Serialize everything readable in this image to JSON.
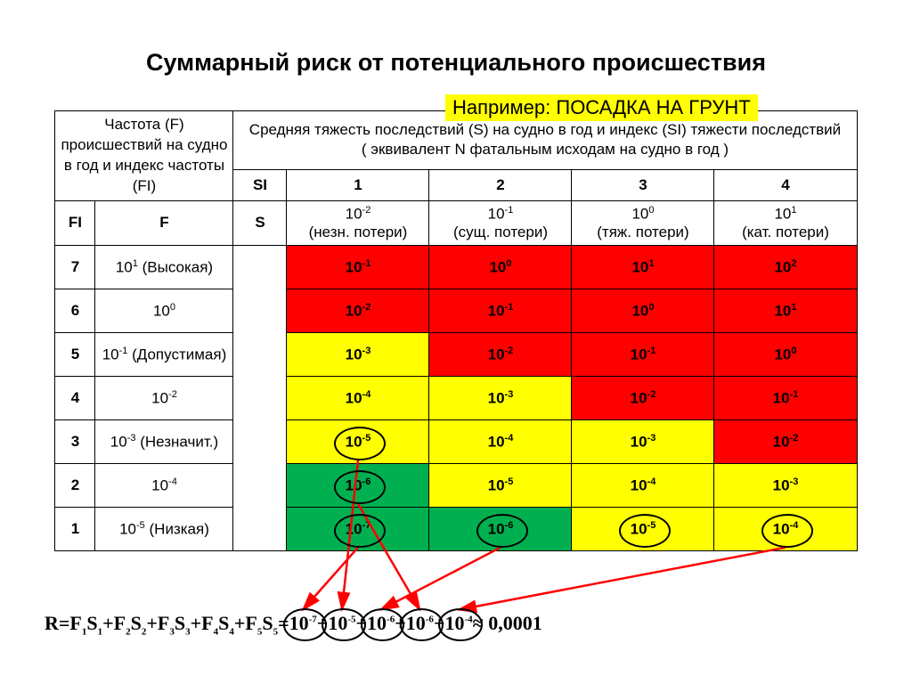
{
  "title": "Суммарный риск от потенциального происшествия",
  "example": {
    "text": "Например: ПОСАДКА  НА  ГРУНТ",
    "bg": "#ffff00"
  },
  "headers": {
    "leftHeader": "Частота (F) происшествий на судно в год и индекс частоты  (FI)",
    "rightHeader": "Средняя тяжесть последствий (S) на судно в год и индекс (SI) тяжести последствий\n( эквивалент N фатальным исходам на судно в год )",
    "FI": "FI",
    "F": "F",
    "SI": "SI",
    "S": "S",
    "siCols": [
      "1",
      "2",
      "3",
      "4"
    ],
    "sHead": [
      {
        "base": "10",
        "exp": "-2",
        "note": "(незн. потери)"
      },
      {
        "base": "10",
        "exp": "-1",
        "note": "(сущ. потери)"
      },
      {
        "base": "10",
        "exp": "0",
        "note": "(тяж. потери)"
      },
      {
        "base": "10",
        "exp": "1",
        "note": "(кат. потери)"
      }
    ]
  },
  "colors": {
    "red": "#ff0000",
    "yellow": "#ffff00",
    "green": "#00b050",
    "white": "#ffffff",
    "arrow": "#ff0000"
  },
  "rows": [
    {
      "fi": "7",
      "f": {
        "b": "10",
        "e": "1",
        "note": "(Высокая)"
      },
      "cells": [
        {
          "b": "10",
          "e": "-1",
          "c": "red"
        },
        {
          "b": "10",
          "e": "0",
          "c": "red"
        },
        {
          "b": "10",
          "e": "1",
          "c": "red"
        },
        {
          "b": "10",
          "e": "2",
          "c": "red"
        }
      ]
    },
    {
      "fi": "6",
      "f": {
        "b": "10",
        "e": "0",
        "note": ""
      },
      "cells": [
        {
          "b": "10",
          "e": "-2",
          "c": "red"
        },
        {
          "b": "10",
          "e": "-1",
          "c": "red"
        },
        {
          "b": "10",
          "e": "0",
          "c": "red"
        },
        {
          "b": "10",
          "e": "1",
          "c": "red"
        }
      ]
    },
    {
      "fi": "5",
      "f": {
        "b": "10",
        "e": "-1",
        "note": "(Допустимая)"
      },
      "cells": [
        {
          "b": "10",
          "e": "-3",
          "c": "yellow"
        },
        {
          "b": "10",
          "e": "-2",
          "c": "red"
        },
        {
          "b": "10",
          "e": "-1",
          "c": "red"
        },
        {
          "b": "10",
          "e": "0",
          "c": "red"
        }
      ]
    },
    {
      "fi": "4",
      "f": {
        "b": "10",
        "e": "-2",
        "note": ""
      },
      "cells": [
        {
          "b": "10",
          "e": "-4",
          "c": "yellow"
        },
        {
          "b": "10",
          "e": "-3",
          "c": "yellow"
        },
        {
          "b": "10",
          "e": "-2",
          "c": "red"
        },
        {
          "b": "10",
          "e": "-1",
          "c": "red"
        }
      ]
    },
    {
      "fi": "3",
      "f": {
        "b": "10",
        "e": "-3",
        "note": "(Незначит.)"
      },
      "cells": [
        {
          "b": "10",
          "e": "-5",
          "c": "yellow"
        },
        {
          "b": "10",
          "e": "-4",
          "c": "yellow"
        },
        {
          "b": "10",
          "e": "-3",
          "c": "yellow"
        },
        {
          "b": "10",
          "e": "-2",
          "c": "red"
        }
      ]
    },
    {
      "fi": "2",
      "f": {
        "b": "10",
        "e": "-4",
        "note": ""
      },
      "cells": [
        {
          "b": "10",
          "e": "-6",
          "c": "green"
        },
        {
          "b": "10",
          "e": "-5",
          "c": "yellow"
        },
        {
          "b": "10",
          "e": "-4",
          "c": "yellow"
        },
        {
          "b": "10",
          "e": "-3",
          "c": "yellow"
        }
      ]
    },
    {
      "fi": "1",
      "f": {
        "b": "10",
        "e": "-5",
        "note": "(Низкая)"
      },
      "cells": [
        {
          "b": "10",
          "e": "-7",
          "c": "green"
        },
        {
          "b": "10",
          "e": "-6",
          "c": "green"
        },
        {
          "b": "10",
          "e": "-5",
          "c": "yellow"
        },
        {
          "b": "10",
          "e": "-4",
          "c": "yellow"
        }
      ]
    }
  ],
  "circled": [
    {
      "row": 4,
      "col": 0
    },
    {
      "row": 5,
      "col": 0
    },
    {
      "row": 6,
      "col": 0
    },
    {
      "row": 6,
      "col": 1
    },
    {
      "row": 6,
      "col": 2
    },
    {
      "row": 6,
      "col": 3
    }
  ],
  "formula": {
    "lhs": "R=F₁S₁+F₂S₂+F₃S₃+F₄S₄+F₅S₅=",
    "rhsTerms": [
      "10",
      "-7",
      "+10",
      "-5",
      "+10",
      "-6",
      " +10",
      "-6",
      "+10",
      "-4"
    ],
    "approx": "≈ 0,0001",
    "termCircles": [
      0,
      1,
      2,
      3,
      4
    ]
  }
}
